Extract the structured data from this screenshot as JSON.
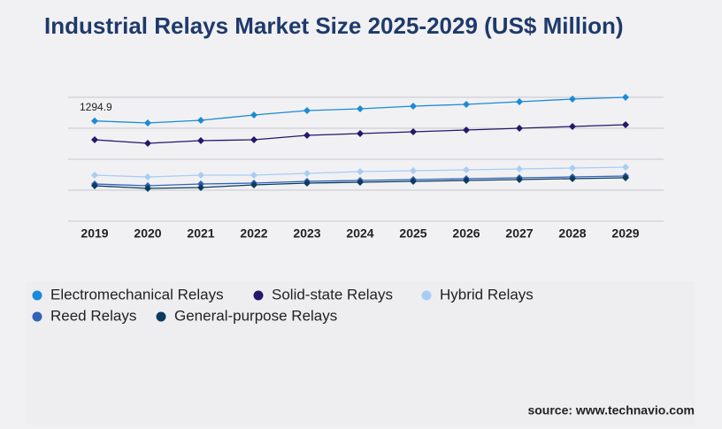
{
  "chart_data": {
    "type": "line",
    "title": "Industrial Relays Market Size 2025-2029 (US$ Million)",
    "categories": [
      "2019",
      "2020",
      "2021",
      "2022",
      "2023",
      "2024",
      "2025",
      "2026",
      "2027",
      "2028",
      "2029"
    ],
    "series": [
      {
        "name": "Electromechanical Relays",
        "color": "#1b8bd6",
        "values": [
          1294.9,
          1269,
          1303,
          1371,
          1429,
          1451,
          1486,
          1509,
          1543,
          1577,
          1600
        ]
      },
      {
        "name": "Solid-state Relays",
        "color": "#23186b",
        "values": [
          1051,
          1006,
          1040,
          1051,
          1109,
          1131,
          1154,
          1177,
          1200,
          1223,
          1246
        ]
      },
      {
        "name": "Hybrid Relays",
        "color": "#a8cdf4",
        "values": [
          594,
          571,
          594,
          594,
          617,
          640,
          651,
          663,
          674,
          686,
          697
        ]
      },
      {
        "name": "Reed Relays",
        "color": "#2f63b8",
        "values": [
          480,
          457,
          480,
          491,
          514,
          526,
          537,
          549,
          560,
          571,
          583
        ]
      },
      {
        "name": "General-purpose Relays",
        "color": "#0d3b5e",
        "values": [
          457,
          423,
          434,
          469,
          491,
          503,
          514,
          526,
          537,
          549,
          560
        ]
      }
    ],
    "annotation_series": 0,
    "annotation_index": 0,
    "ylim": [
      0,
      1600
    ],
    "yticks": [
      0,
      400,
      800,
      1200,
      1600
    ],
    "grid": true,
    "source": "source: www.technavio.com"
  }
}
